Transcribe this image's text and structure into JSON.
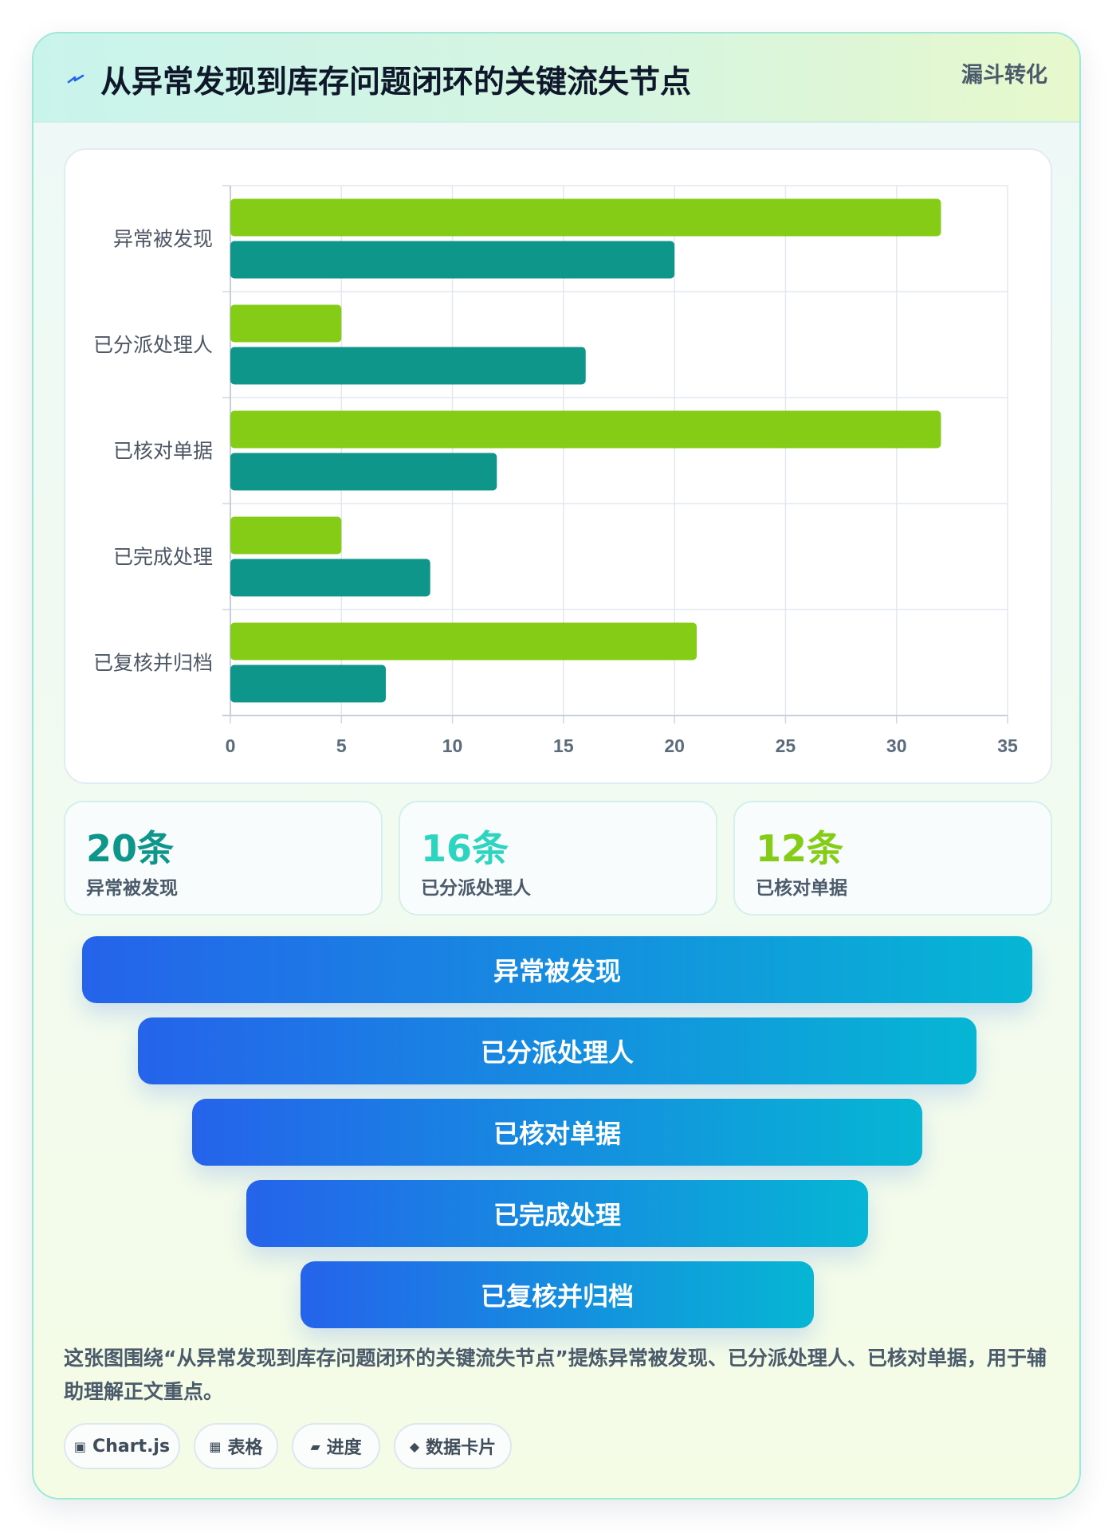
{
  "header": {
    "icon": "lightning-icon",
    "title": "从异常发现到库存问题闭环的关键流失节点",
    "badge": "漏斗转化"
  },
  "chart_data": {
    "type": "bar",
    "orientation": "horizontal",
    "categories": [
      "异常被发现",
      "已分派处理人",
      "已核对单据",
      "已完成处理",
      "已复核并归档"
    ],
    "series": [
      {
        "color": "#84cc16",
        "values": [
          32,
          5,
          32,
          5,
          21
        ]
      },
      {
        "color": "#0f968a",
        "values": [
          20,
          16,
          12,
          9,
          7
        ]
      }
    ],
    "xticks": [
      "0",
      "5",
      "10",
      "15",
      "20",
      "25",
      "30",
      "35"
    ],
    "xlim": [
      0,
      35
    ],
    "grid": true,
    "legend": "none"
  },
  "stats": [
    {
      "value": "20条",
      "label": "异常被发现",
      "color": "#0f968a"
    },
    {
      "value": "16条",
      "label": "已分派处理人",
      "color": "#2dd4bf"
    },
    {
      "value": "12条",
      "label": "已核对单据",
      "color": "#84cc16"
    }
  ],
  "funnel": {
    "stages": [
      "异常被发现",
      "已分派处理人",
      "已核对单据",
      "已完成处理",
      "已复核并归档"
    ]
  },
  "summary": "这张图围绕“从异常发现到库存问题闭环的关键流失节点”提炼异常被发现、已分派处理人、已核对单据，用于辅助理解正文重点。",
  "tags": [
    {
      "icon": "square-icon",
      "glyph": "▣",
      "label": "Chart.js"
    },
    {
      "icon": "table-icon",
      "glyph": "▦",
      "label": "表格"
    },
    {
      "icon": "progress-icon",
      "glyph": "▰",
      "label": "进度"
    },
    {
      "icon": "diamond-icon",
      "glyph": "◆",
      "label": "数据卡片"
    }
  ]
}
